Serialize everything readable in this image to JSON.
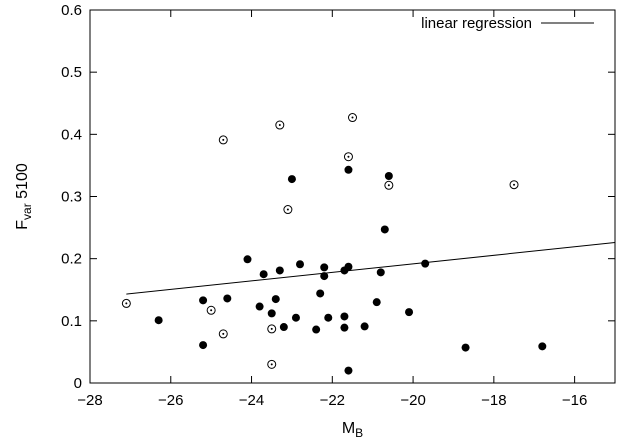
{
  "chart_data": {
    "type": "scatter",
    "xlabel": "M",
    "xlabel_sub": "B",
    "ylabel": "F",
    "ylabel_sub": "var",
    "ylabel_suffix": " 5100",
    "xlim": [
      -28,
      -15
    ],
    "ylim": [
      0,
      0.6
    ],
    "xticks": [
      -28,
      -26,
      -24,
      -22,
      -20,
      -18,
      -16
    ],
    "yticks": [
      0,
      0.1,
      0.2,
      0.3,
      0.4,
      0.5,
      0.6
    ],
    "xtick_labels": [
      "−28",
      "−26",
      "−24",
      "−22",
      "−20",
      "−18",
      "−16"
    ],
    "ytick_labels": [
      "0",
      "0.1",
      "0.2",
      "0.3",
      "0.4",
      "0.5",
      "0.6"
    ],
    "grid": false,
    "legend": {
      "position": "top-right",
      "label": "linear regression"
    },
    "series": [
      {
        "marker": "filled-circle",
        "x": [
          -26.3,
          -25.2,
          -25.2,
          -24.6,
          -24.1,
          -23.8,
          -23.7,
          -23.5,
          -23.4,
          -23.3,
          -23.2,
          -23.0,
          -22.9,
          -22.8,
          -22.4,
          -22.3,
          -22.2,
          -22.2,
          -22.1,
          -21.7,
          -21.7,
          -21.7,
          -21.6,
          -21.6,
          -21.6,
          -21.2,
          -20.9,
          -20.8,
          -20.7,
          -20.6,
          -20.1,
          -19.7,
          -18.7,
          -16.8
        ],
        "y": [
          0.101,
          0.133,
          0.061,
          0.136,
          0.199,
          0.123,
          0.175,
          0.112,
          0.135,
          0.181,
          0.09,
          0.328,
          0.105,
          0.191,
          0.086,
          0.144,
          0.186,
          0.172,
          0.105,
          0.107,
          0.089,
          0.181,
          0.343,
          0.187,
          0.02,
          0.091,
          0.13,
          0.178,
          0.247,
          0.333,
          0.114,
          0.192,
          0.057,
          0.059
        ]
      },
      {
        "marker": "open-circle-dot",
        "x": [
          -27.1,
          -25.0,
          -24.7,
          -24.7,
          -23.5,
          -23.5,
          -23.3,
          -23.1,
          -21.6,
          -21.5,
          -20.6,
          -17.5
        ],
        "y": [
          0.128,
          0.117,
          0.079,
          0.391,
          0.087,
          0.03,
          0.415,
          0.279,
          0.364,
          0.427,
          0.318,
          0.319
        ]
      }
    ],
    "regression_line": {
      "x": [
        -27.1,
        -15
      ],
      "y": [
        0.143,
        0.226
      ]
    }
  }
}
